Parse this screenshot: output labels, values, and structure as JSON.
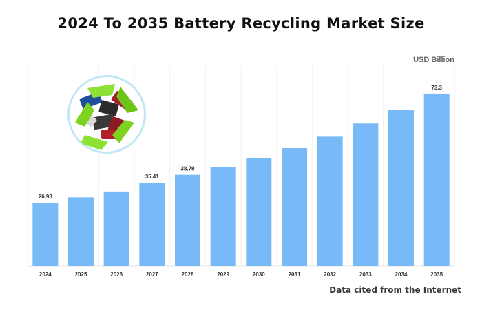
{
  "title": "2024 To 2035 Battery Recycling Market Size",
  "unit_label": "USD Billion",
  "source_note": "Data cited from the Internet",
  "colors": {
    "bar": "#78baf7",
    "title": "#111111"
  },
  "icon": "recycled-batteries-image",
  "chart_data": {
    "type": "bar",
    "title": "2024 To 2035 Battery Recycling Market Size",
    "ylabel": "USD Billion",
    "xlabel": "",
    "categories": [
      "2024",
      "2025",
      "2026",
      "2027",
      "2028",
      "2029",
      "2030",
      "2031",
      "2032",
      "2033",
      "2034",
      "2035"
    ],
    "values": [
      26.93,
      29.2,
      31.7,
      35.41,
      38.79,
      42.2,
      45.9,
      50.1,
      55.0,
      60.6,
      66.4,
      73.3
    ],
    "data_labels": {
      "0": "26.93",
      "3": "35.41",
      "4": "38.79",
      "11": "73.3"
    },
    "ylim": [
      0,
      85
    ],
    "grid": "vertical",
    "legend": "none"
  }
}
